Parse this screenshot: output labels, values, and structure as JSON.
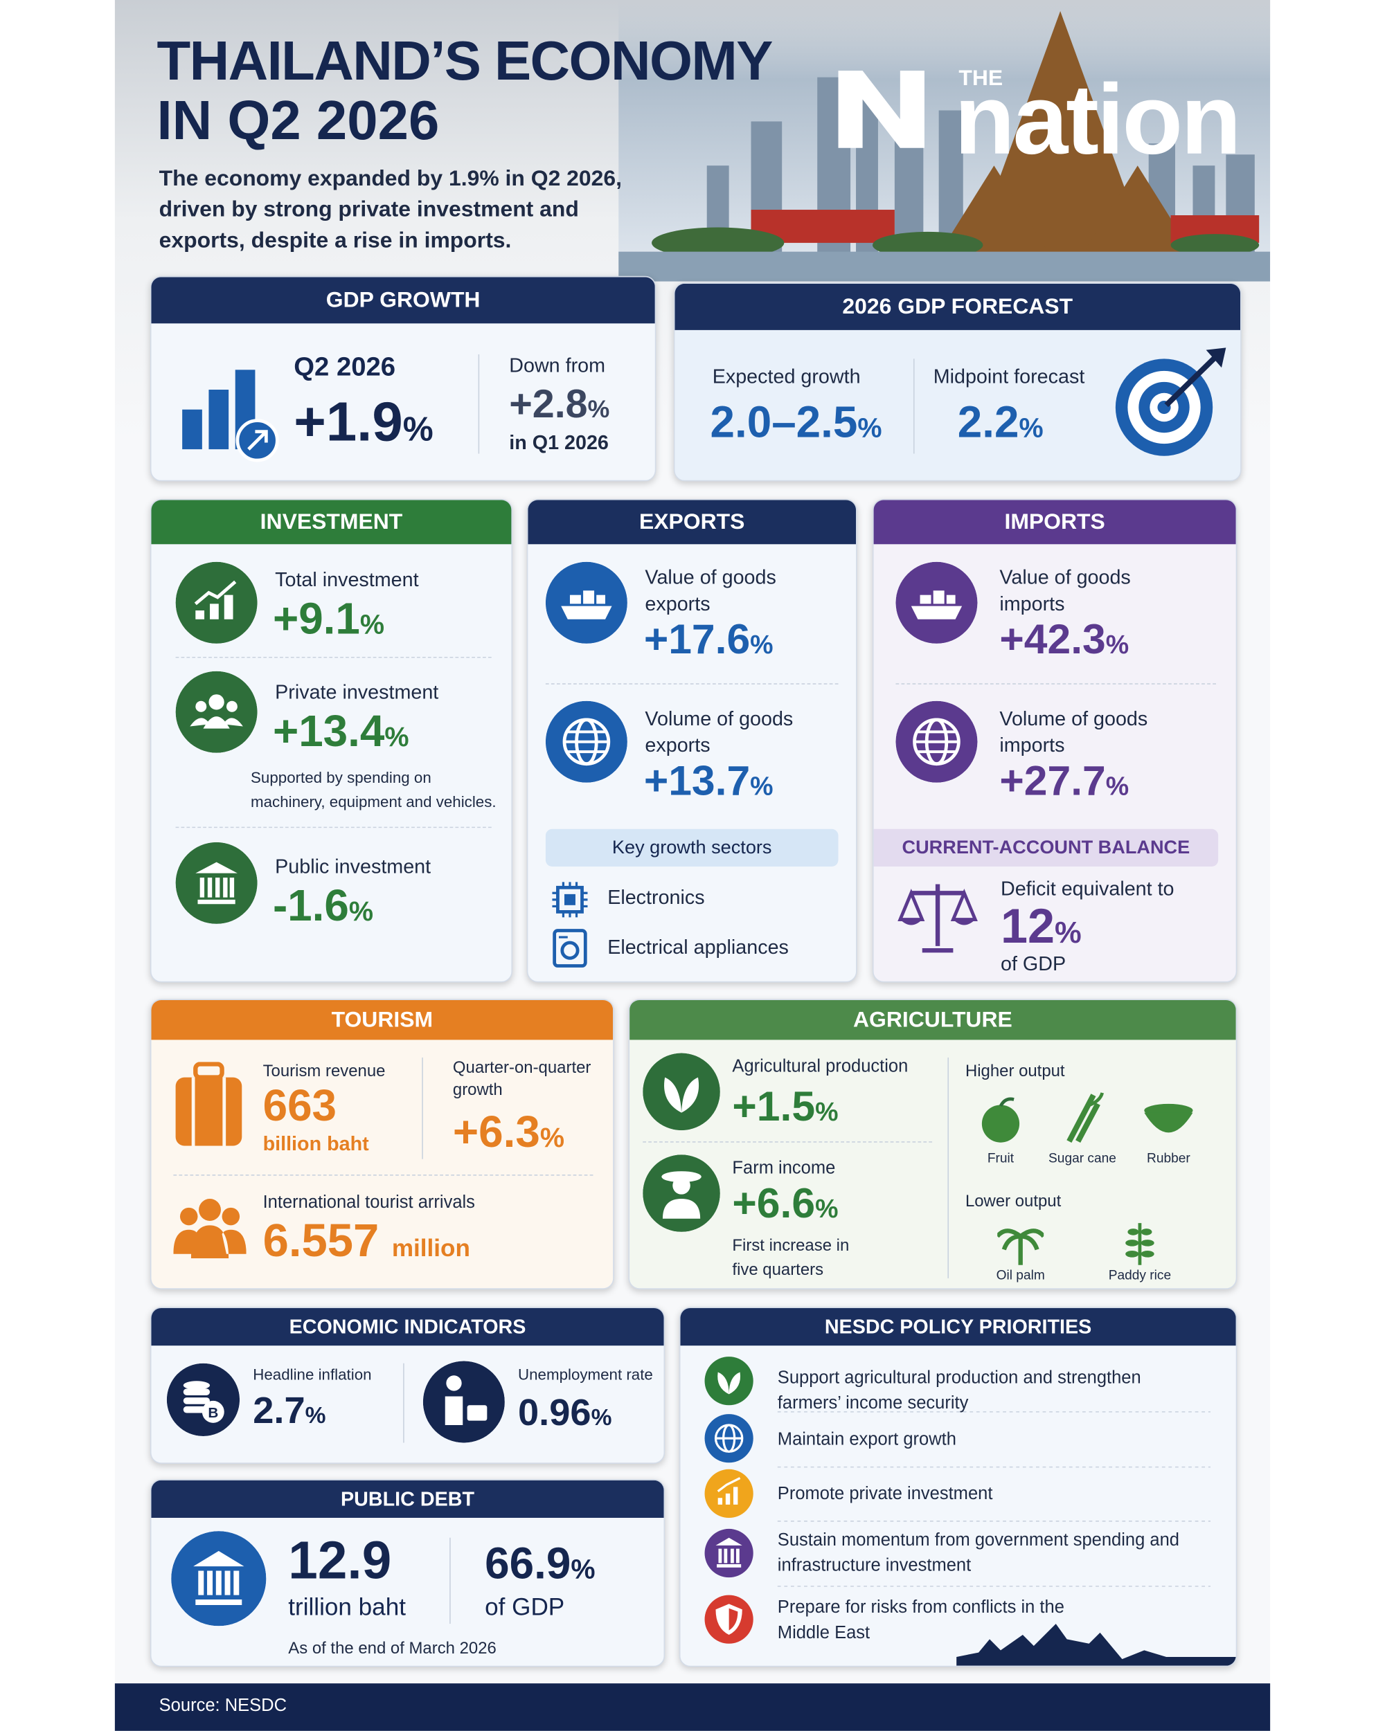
{
  "header": {
    "title_line1": "THAILAND’S ECONOMY",
    "title_line2": "IN Q2 2026",
    "subtitle": "The economy expanded by 1.9% in Q2 2026, driven by strong private investment and exports, despite a rise in imports.",
    "logo_small": "THE",
    "logo": "nation"
  },
  "gdp_growth": {
    "heading": "GDP GROWTH",
    "period": "Q2 2026",
    "value": "+1.9",
    "unit": "%",
    "compare_label": "Down from",
    "compare_value": "+2.8",
    "compare_unit": "%",
    "compare_period": "in Q1 2026"
  },
  "forecast": {
    "heading": "2026 GDP FORECAST",
    "expected_label": "Expected growth",
    "expected_value": "2.0–2.5",
    "expected_unit": "%",
    "midpoint_label": "Midpoint forecast",
    "midpoint_value": "2.2",
    "midpoint_unit": "%"
  },
  "investment": {
    "heading": "INVESTMENT",
    "items": [
      {
        "label": "Total investment",
        "value": "+9.1",
        "unit": "%"
      },
      {
        "label": "Private investment",
        "value": "+13.4",
        "unit": "%",
        "note": "Supported by spending on machinery, equipment and vehicles."
      },
      {
        "label": "Public investment",
        "value": "-1.6",
        "unit": "%"
      }
    ]
  },
  "exports": {
    "heading": "EXPORTS",
    "items": [
      {
        "label": "Value of goods exports",
        "value": "+17.6",
        "unit": "%"
      },
      {
        "label": "Volume of goods exports",
        "value": "+13.7",
        "unit": "%"
      }
    ],
    "sectors_heading": "Key growth sectors",
    "sectors": [
      "Electronics",
      "Electrical appliances"
    ]
  },
  "imports": {
    "heading": "IMPORTS",
    "items": [
      {
        "label": "Value of goods imports",
        "value": "+42.3",
        "unit": "%"
      },
      {
        "label": "Volume of goods imports",
        "value": "+27.7",
        "unit": "%"
      }
    ],
    "current_account": {
      "heading": "CURRENT-ACCOUNT BALANCE",
      "label": "Deficit equivalent to",
      "value": "12",
      "unit": "%",
      "suffix": "of GDP"
    }
  },
  "tourism": {
    "heading": "TOURISM",
    "revenue_label": "Tourism revenue",
    "revenue_value": "663",
    "revenue_unit": "billion baht",
    "growth_label": "Quarter-on-quarter growth",
    "growth_value": "+6.3",
    "growth_unit": "%",
    "arrivals_label": "International tourist arrivals",
    "arrivals_value": "6.557",
    "arrivals_unit": "million"
  },
  "agriculture": {
    "heading": "AGRICULTURE",
    "items": [
      {
        "label": "Agricultural production",
        "value": "+1.5",
        "unit": "%"
      },
      {
        "label": "Farm income",
        "value": "+6.6",
        "unit": "%",
        "note": "First increase in five quarters"
      }
    ],
    "higher_heading": "Higher output",
    "higher": [
      "Fruit",
      "Sugar cane",
      "Rubber"
    ],
    "lower_heading": "Lower output",
    "lower": [
      "Oil palm",
      "Paddy rice"
    ]
  },
  "indicators": {
    "heading": "ECONOMIC INDICATORS",
    "items": [
      {
        "label": "Headline inflation",
        "value": "2.7",
        "unit": "%"
      },
      {
        "label": "Unemployment rate",
        "value": "0.96",
        "unit": "%"
      }
    ]
  },
  "public_debt": {
    "heading": "PUBLIC DEBT",
    "value": "12.9",
    "unit": "trillion baht",
    "share_value": "66.9",
    "share_unit": "%",
    "share_suffix": "of GDP",
    "note": "As of the end of March 2026"
  },
  "priorities": {
    "heading": "NESDC POLICY PRIORITIES",
    "items": [
      "Support agricultural production and strengthen farmers’ income security",
      "Maintain export growth",
      "Promote private investment",
      "Sustain momentum from government spending and infrastructure investment",
      "Prepare for risks from conflicts in the Middle East"
    ]
  },
  "footer": {
    "source": "Source: NESDC"
  }
}
